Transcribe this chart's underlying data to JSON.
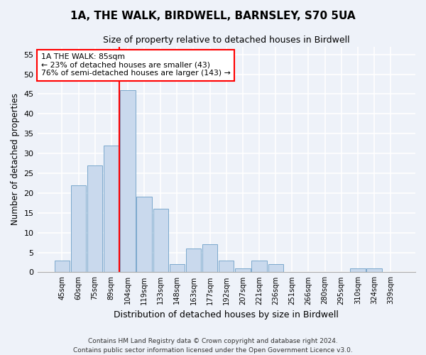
{
  "title": "1A, THE WALK, BIRDWELL, BARNSLEY, S70 5UA",
  "subtitle": "Size of property relative to detached houses in Birdwell",
  "xlabel": "Distribution of detached houses by size in Birdwell",
  "ylabel": "Number of detached properties",
  "bar_color": "#c9d9ed",
  "bar_edge_color": "#7aa8cc",
  "categories": [
    "45sqm",
    "60sqm",
    "75sqm",
    "89sqm",
    "104sqm",
    "119sqm",
    "133sqm",
    "148sqm",
    "163sqm",
    "177sqm",
    "192sqm",
    "207sqm",
    "221sqm",
    "236sqm",
    "251sqm",
    "266sqm",
    "280sqm",
    "295sqm",
    "310sqm",
    "324sqm",
    "339sqm"
  ],
  "values": [
    3,
    22,
    27,
    32,
    46,
    19,
    16,
    2,
    6,
    7,
    3,
    1,
    3,
    2,
    0,
    0,
    0,
    0,
    1,
    1,
    0
  ],
  "ylim": [
    0,
    57
  ],
  "yticks": [
    0,
    5,
    10,
    15,
    20,
    25,
    30,
    35,
    40,
    45,
    50,
    55
  ],
  "red_line_x": 3.5,
  "annotation_line1": "1A THE WALK: 85sqm",
  "annotation_line2": "← 23% of detached houses are smaller (43)",
  "annotation_line3": "76% of semi-detached houses are larger (143) →",
  "annotation_box_color": "white",
  "annotation_box_edge": "red",
  "footer_line1": "Contains HM Land Registry data © Crown copyright and database right 2024.",
  "footer_line2": "Contains public sector information licensed under the Open Government Licence v3.0.",
  "background_color": "#eef2f9",
  "grid_color": "#ffffff"
}
